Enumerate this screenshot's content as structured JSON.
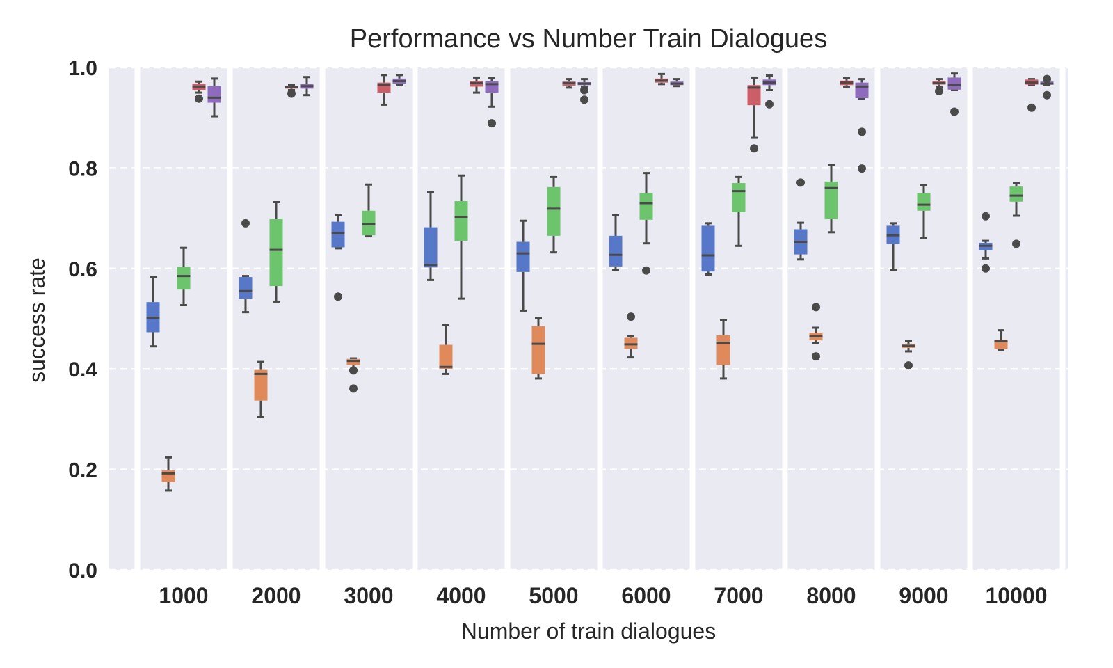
{
  "chart_data": {
    "type": "box",
    "title": "Performance vs Number Train Dialogues",
    "xlabel": "Number of train dialogues",
    "ylabel": "success rate",
    "ylim": [
      0,
      1.0
    ],
    "yticks": [
      "0.0",
      "0.2",
      "0.4",
      "0.6",
      "0.8",
      "1.0"
    ],
    "grid": "horizontal dashed",
    "categories": [
      "1000",
      "2000",
      "3000",
      "4000",
      "5000",
      "6000",
      "7000",
      "8000",
      "9000",
      "10000"
    ],
    "series_colors": [
      "#5778c8",
      "#e08a5c",
      "#6cc46c",
      "#cc5e68",
      "#8f6bbd"
    ],
    "groups": [
      {
        "category": "1000",
        "boxes": [
          {
            "min": 0.445,
            "q1": 0.473,
            "median": 0.502,
            "q3": 0.533,
            "max": 0.583,
            "outliers": []
          },
          {
            "min": 0.158,
            "q1": 0.175,
            "median": 0.192,
            "q3": 0.198,
            "max": 0.224,
            "outliers": []
          },
          {
            "min": 0.527,
            "q1": 0.558,
            "median": 0.585,
            "q3": 0.603,
            "max": 0.641,
            "outliers": []
          },
          {
            "min": 0.95,
            "q1": 0.955,
            "median": 0.962,
            "q3": 0.968,
            "max": 0.972,
            "outliers": [
              0.938
            ]
          },
          {
            "min": 0.903,
            "q1": 0.93,
            "median": 0.94,
            "q3": 0.963,
            "max": 0.978,
            "outliers": []
          }
        ]
      },
      {
        "category": "2000",
        "boxes": [
          {
            "min": 0.513,
            "q1": 0.54,
            "median": 0.555,
            "q3": 0.583,
            "max": 0.585,
            "outliers": [
              0.69
            ]
          },
          {
            "min": 0.304,
            "q1": 0.337,
            "median": 0.39,
            "q3": 0.398,
            "max": 0.414,
            "outliers": []
          },
          {
            "min": 0.534,
            "q1": 0.565,
            "median": 0.637,
            "q3": 0.698,
            "max": 0.732,
            "outliers": []
          },
          {
            "min": 0.955,
            "q1": 0.958,
            "median": 0.961,
            "q3": 0.963,
            "max": 0.966,
            "outliers": [
              0.948
            ]
          },
          {
            "min": 0.945,
            "q1": 0.958,
            "median": 0.963,
            "q3": 0.967,
            "max": 0.981,
            "outliers": []
          }
        ]
      },
      {
        "category": "3000",
        "boxes": [
          {
            "min": 0.64,
            "q1": 0.642,
            "median": 0.67,
            "q3": 0.693,
            "max": 0.707,
            "outliers": [
              0.544
            ]
          },
          {
            "min": 0.397,
            "q1": 0.408,
            "median": 0.416,
            "q3": 0.42,
            "max": 0.421,
            "outliers": [
              0.361,
              0.397
            ]
          },
          {
            "min": 0.664,
            "q1": 0.666,
            "median": 0.688,
            "q3": 0.715,
            "max": 0.767,
            "outliers": []
          },
          {
            "min": 0.926,
            "q1": 0.95,
            "median": 0.966,
            "q3": 0.97,
            "max": 0.985,
            "outliers": []
          },
          {
            "min": 0.966,
            "q1": 0.968,
            "median": 0.973,
            "q3": 0.978,
            "max": 0.985,
            "outliers": []
          }
        ]
      },
      {
        "category": "4000",
        "boxes": [
          {
            "min": 0.577,
            "q1": 0.602,
            "median": 0.607,
            "q3": 0.682,
            "max": 0.752,
            "outliers": []
          },
          {
            "min": 0.39,
            "q1": 0.4,
            "median": 0.404,
            "q3": 0.448,
            "max": 0.487,
            "outliers": []
          },
          {
            "min": 0.54,
            "q1": 0.655,
            "median": 0.702,
            "q3": 0.734,
            "max": 0.785,
            "outliers": []
          },
          {
            "min": 0.95,
            "q1": 0.962,
            "median": 0.969,
            "q3": 0.973,
            "max": 0.98,
            "outliers": []
          },
          {
            "min": 0.922,
            "q1": 0.95,
            "median": 0.967,
            "q3": 0.973,
            "max": 0.979,
            "outliers": [
              0.889
            ]
          }
        ]
      },
      {
        "category": "5000",
        "boxes": [
          {
            "min": 0.516,
            "q1": 0.593,
            "median": 0.63,
            "q3": 0.653,
            "max": 0.695,
            "outliers": []
          },
          {
            "min": 0.381,
            "q1": 0.39,
            "median": 0.45,
            "q3": 0.485,
            "max": 0.501,
            "outliers": []
          },
          {
            "min": 0.632,
            "q1": 0.665,
            "median": 0.719,
            "q3": 0.762,
            "max": 0.782,
            "outliers": []
          },
          {
            "min": 0.96,
            "q1": 0.964,
            "median": 0.969,
            "q3": 0.972,
            "max": 0.977,
            "outliers": []
          },
          {
            "min": 0.962,
            "q1": 0.965,
            "median": 0.968,
            "q3": 0.971,
            "max": 0.977,
            "outliers": [
              0.955,
              0.936
            ]
          }
        ]
      },
      {
        "category": "6000",
        "boxes": [
          {
            "min": 0.597,
            "q1": 0.604,
            "median": 0.627,
            "q3": 0.665,
            "max": 0.707,
            "outliers": []
          },
          {
            "min": 0.423,
            "q1": 0.44,
            "median": 0.449,
            "q3": 0.462,
            "max": 0.465,
            "outliers": [
              0.504
            ]
          },
          {
            "min": 0.65,
            "q1": 0.697,
            "median": 0.73,
            "q3": 0.75,
            "max": 0.79,
            "outliers": [
              0.596
            ]
          },
          {
            "min": 0.967,
            "q1": 0.97,
            "median": 0.974,
            "q3": 0.978,
            "max": 0.987,
            "outliers": []
          },
          {
            "min": 0.963,
            "q1": 0.965,
            "median": 0.968,
            "q3": 0.972,
            "max": 0.977,
            "outliers": []
          }
        ]
      },
      {
        "category": "7000",
        "boxes": [
          {
            "min": 0.588,
            "q1": 0.594,
            "median": 0.626,
            "q3": 0.685,
            "max": 0.69,
            "outliers": []
          },
          {
            "min": 0.381,
            "q1": 0.408,
            "median": 0.452,
            "q3": 0.467,
            "max": 0.497,
            "outliers": []
          },
          {
            "min": 0.645,
            "q1": 0.712,
            "median": 0.754,
            "q3": 0.77,
            "max": 0.782,
            "outliers": []
          },
          {
            "min": 0.86,
            "q1": 0.925,
            "median": 0.96,
            "q3": 0.965,
            "max": 0.98,
            "outliers": [
              0.839
            ]
          },
          {
            "min": 0.955,
            "q1": 0.965,
            "median": 0.97,
            "q3": 0.976,
            "max": 0.984,
            "outliers": [
              0.927
            ]
          }
        ]
      },
      {
        "category": "8000",
        "boxes": [
          {
            "min": 0.618,
            "q1": 0.628,
            "median": 0.653,
            "q3": 0.678,
            "max": 0.691,
            "outliers": [
              0.771
            ]
          },
          {
            "min": 0.452,
            "q1": 0.457,
            "median": 0.465,
            "q3": 0.472,
            "max": 0.482,
            "outliers": [
              0.523,
              0.425
            ]
          },
          {
            "min": 0.672,
            "q1": 0.698,
            "median": 0.76,
            "q3": 0.773,
            "max": 0.806,
            "outliers": []
          },
          {
            "min": 0.962,
            "q1": 0.965,
            "median": 0.97,
            "q3": 0.974,
            "max": 0.979,
            "outliers": []
          },
          {
            "min": 0.938,
            "q1": 0.939,
            "median": 0.962,
            "q3": 0.97,
            "max": 0.977,
            "outliers": [
              0.872,
              0.799
            ]
          }
        ]
      },
      {
        "category": "9000",
        "boxes": [
          {
            "min": 0.597,
            "q1": 0.649,
            "median": 0.666,
            "q3": 0.685,
            "max": 0.69,
            "outliers": []
          },
          {
            "min": 0.435,
            "q1": 0.442,
            "median": 0.446,
            "q3": 0.449,
            "max": 0.455,
            "outliers": [
              0.407
            ]
          },
          {
            "min": 0.66,
            "q1": 0.715,
            "median": 0.727,
            "q3": 0.75,
            "max": 0.766,
            "outliers": []
          },
          {
            "min": 0.962,
            "q1": 0.966,
            "median": 0.969,
            "q3": 0.973,
            "max": 0.977,
            "outliers": [
              0.953
            ]
          },
          {
            "min": 0.955,
            "q1": 0.956,
            "median": 0.965,
            "q3": 0.98,
            "max": 0.988,
            "outliers": [
              0.912
            ]
          }
        ]
      },
      {
        "category": "10000",
        "boxes": [
          {
            "min": 0.62,
            "q1": 0.636,
            "median": 0.645,
            "q3": 0.651,
            "max": 0.655,
            "outliers": [
              0.704,
              0.6
            ]
          },
          {
            "min": 0.438,
            "q1": 0.44,
            "median": 0.455,
            "q3": 0.458,
            "max": 0.477,
            "outliers": []
          },
          {
            "min": 0.705,
            "q1": 0.733,
            "median": 0.745,
            "q3": 0.763,
            "max": 0.77,
            "outliers": [
              0.649
            ]
          },
          {
            "min": 0.965,
            "q1": 0.966,
            "median": 0.97,
            "q3": 0.976,
            "max": 0.977,
            "outliers": [
              0.92
            ]
          },
          {
            "min": 0.965,
            "q1": 0.966,
            "median": 0.968,
            "q3": 0.972,
            "max": 0.975,
            "outliers": [
              0.977,
              0.945
            ]
          }
        ]
      }
    ]
  }
}
